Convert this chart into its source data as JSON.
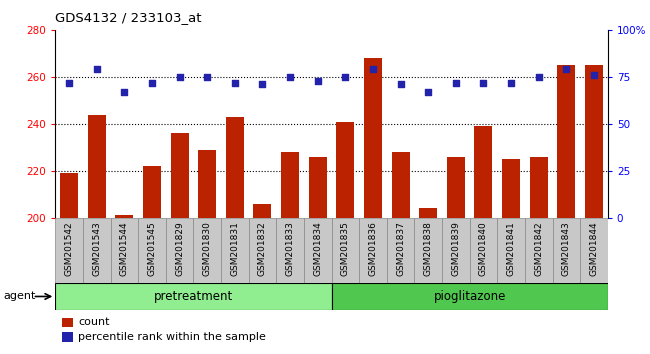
{
  "title": "GDS4132 / 233103_at",
  "samples": [
    "GSM201542",
    "GSM201543",
    "GSM201544",
    "GSM201545",
    "GSM201829",
    "GSM201830",
    "GSM201831",
    "GSM201832",
    "GSM201833",
    "GSM201834",
    "GSM201835",
    "GSM201836",
    "GSM201837",
    "GSM201838",
    "GSM201839",
    "GSM201840",
    "GSM201841",
    "GSM201842",
    "GSM201843",
    "GSM201844"
  ],
  "counts": [
    219,
    244,
    201,
    222,
    236,
    229,
    243,
    206,
    228,
    226,
    241,
    268,
    228,
    204,
    226,
    239,
    225,
    226,
    265,
    265
  ],
  "percentiles": [
    72,
    79,
    67,
    72,
    75,
    75,
    72,
    71,
    75,
    73,
    75,
    79,
    71,
    67,
    72,
    72,
    72,
    75,
    79,
    76
  ],
  "groups": [
    {
      "label": "pretreatment",
      "start": 0,
      "end": 10,
      "color": "#90EE90"
    },
    {
      "label": "pioglitazone",
      "start": 10,
      "end": 20,
      "color": "#50C850"
    }
  ],
  "ylim_left": [
    200,
    280
  ],
  "ylim_right": [
    0,
    100
  ],
  "yticks_left": [
    200,
    220,
    240,
    260,
    280
  ],
  "yticks_right": [
    0,
    25,
    50,
    75,
    100
  ],
  "ytick_labels_right": [
    "0",
    "25",
    "50",
    "75",
    "100%"
  ],
  "bar_color": "#BB2200",
  "dot_color": "#2222AA",
  "bar_width": 0.65,
  "grid_yticks": [
    220,
    240,
    260
  ],
  "background_color": "#ffffff",
  "agent_label": "agent",
  "legend_count_label": "count",
  "legend_percentile_label": "percentile rank within the sample",
  "tick_bg_color": "#C8C8C8",
  "tick_border_color": "#888888"
}
